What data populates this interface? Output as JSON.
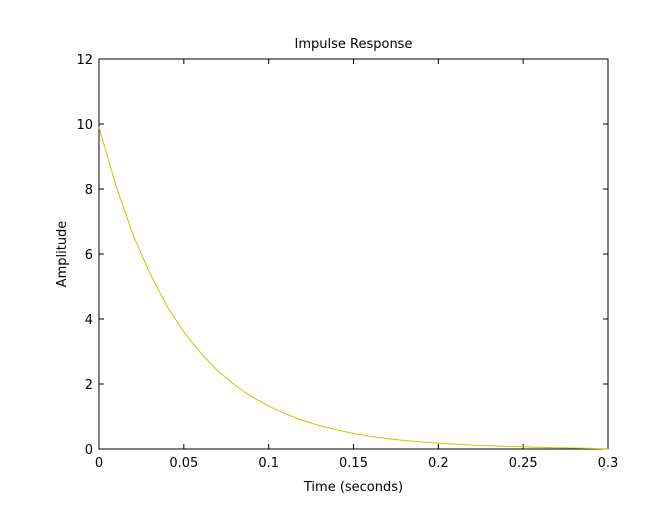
{
  "chart_data": {
    "type": "line",
    "title": "Impulse Response",
    "xlabel": "Time (seconds)",
    "ylabel": "Amplitude",
    "xlim": [
      0,
      0.3
    ],
    "ylim": [
      0,
      12
    ],
    "xticks": [
      0,
      0.05,
      0.1,
      0.15,
      0.2,
      0.25,
      0.3
    ],
    "xtick_labels": [
      "0",
      "0.05",
      "0.1",
      "0.15",
      "0.2",
      "0.25",
      "0.3"
    ],
    "yticks": [
      0,
      2,
      4,
      6,
      8,
      10,
      12
    ],
    "ytick_labels": [
      "0",
      "2",
      "4",
      "6",
      "8",
      "10",
      "12"
    ],
    "grid": false,
    "series": [
      {
        "color": "#c8c800",
        "x": [
          0,
          0.01,
          0.02,
          0.03,
          0.04,
          0.05,
          0.06,
          0.07,
          0.08,
          0.09,
          0.1,
          0.11,
          0.12,
          0.13,
          0.14,
          0.15,
          0.16,
          0.17,
          0.18,
          0.19,
          0.2,
          0.21,
          0.22,
          0.23,
          0.24,
          0.25,
          0.26,
          0.27,
          0.28,
          0.29,
          0.3
        ],
        "y": [
          9.9,
          8.1,
          6.6,
          5.4,
          4.4,
          3.6,
          2.95,
          2.4,
          1.97,
          1.61,
          1.32,
          1.08,
          0.88,
          0.72,
          0.59,
          0.48,
          0.39,
          0.32,
          0.26,
          0.22,
          0.18,
          0.15,
          0.12,
          0.1,
          0.08,
          0.07,
          0.05,
          0.04,
          0.03,
          0.02,
          0.0
        ]
      }
    ]
  }
}
